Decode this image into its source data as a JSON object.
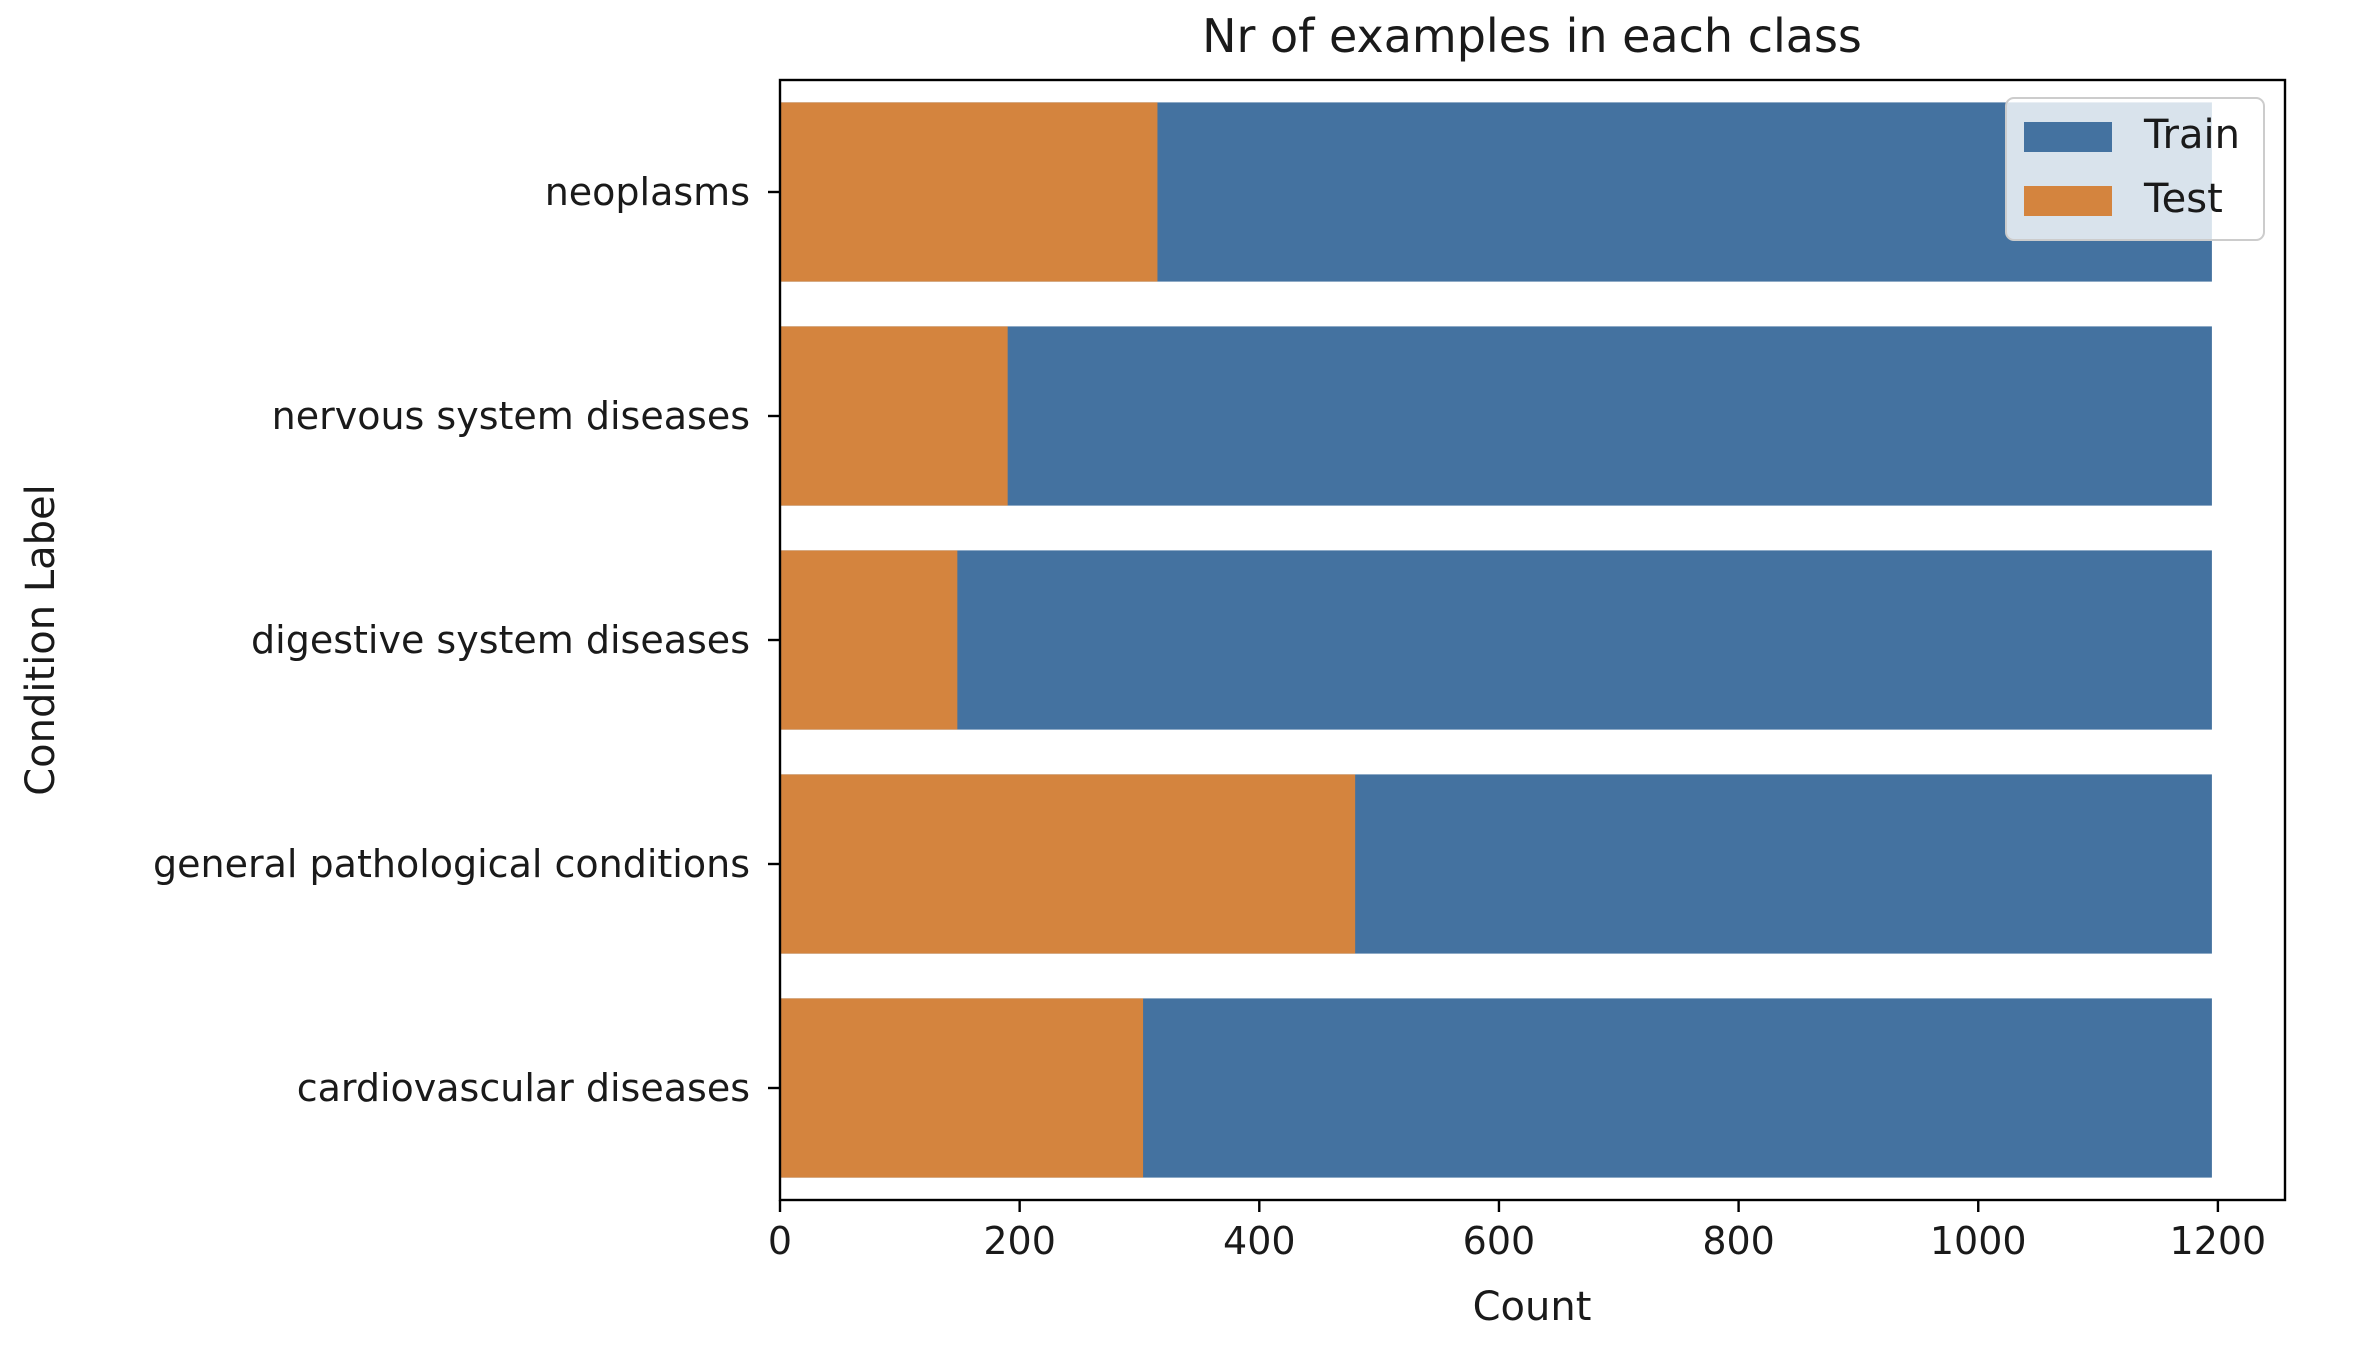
{
  "chart_data": {
    "type": "bar",
    "orientation": "horizontal",
    "title": "Nr of examples in each class",
    "xlabel": "Count",
    "ylabel": "Condition Label",
    "categories": [
      "neoplasms",
      "nervous system diseases",
      "digestive system diseases",
      "general pathological conditions",
      "cardiovascular diseases"
    ],
    "series": [
      {
        "name": "Train",
        "color": "#4472a0",
        "values": [
          1195,
          1195,
          1195,
          1195,
          1195
        ]
      },
      {
        "name": "Test",
        "color": "#d4843e",
        "values": [
          315,
          190,
          148,
          480,
          303
        ]
      }
    ],
    "overlay": true,
    "xlim": [
      0,
      1256
    ],
    "xticks": [
      0,
      200,
      400,
      600,
      800,
      1000,
      1200
    ],
    "xtick_labels": [
      "0",
      "200",
      "400",
      "600",
      "800",
      "1000",
      "1200"
    ],
    "grid": false,
    "legend": {
      "position": "top-right",
      "entries": [
        "Train",
        "Test"
      ]
    }
  }
}
